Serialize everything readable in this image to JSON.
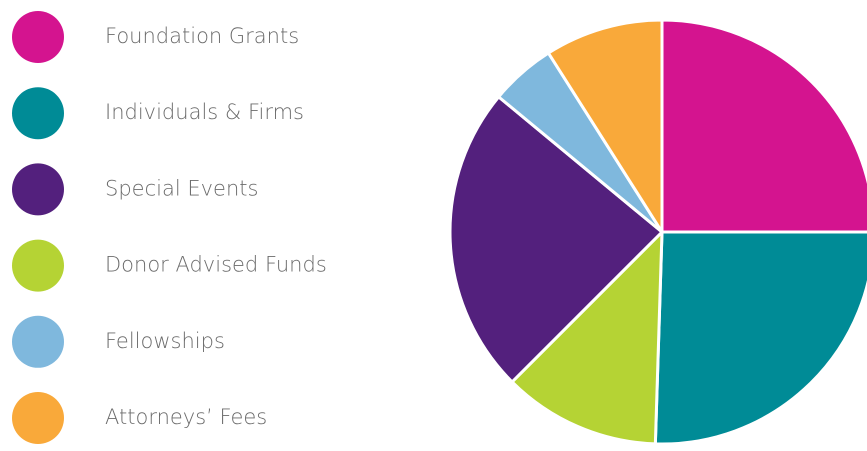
{
  "chart_data": {
    "type": "pie",
    "categories": [
      "Foundation Grants",
      "Individuals & Firms",
      "Special Events",
      "Donor Advised Funds",
      "Fellowships",
      "Attorneys’ Fees"
    ],
    "values": [
      25,
      25.5,
      23.5,
      12,
      5,
      9
    ],
    "colors": [
      "#d4148f",
      "#008b96",
      "#53207d",
      "#b5d334",
      "#7fb8dd",
      "#f9a93a"
    ],
    "slice_order": [
      0,
      1,
      3,
      2,
      4,
      5
    ],
    "legend": "left"
  }
}
